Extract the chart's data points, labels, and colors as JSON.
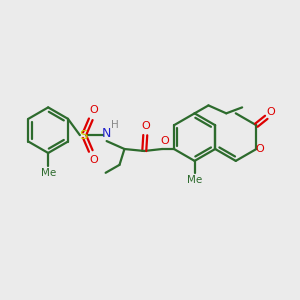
{
  "bg_color": "#ebebeb",
  "bond_color": "#2d6b2d",
  "atom_colors": {
    "O": "#dd0000",
    "N": "#2222cc",
    "S": "#cccc00",
    "H": "#888888",
    "C": "#2d6b2d"
  },
  "line_width": 1.6,
  "figsize": [
    3.0,
    3.0
  ],
  "dpi": 100
}
